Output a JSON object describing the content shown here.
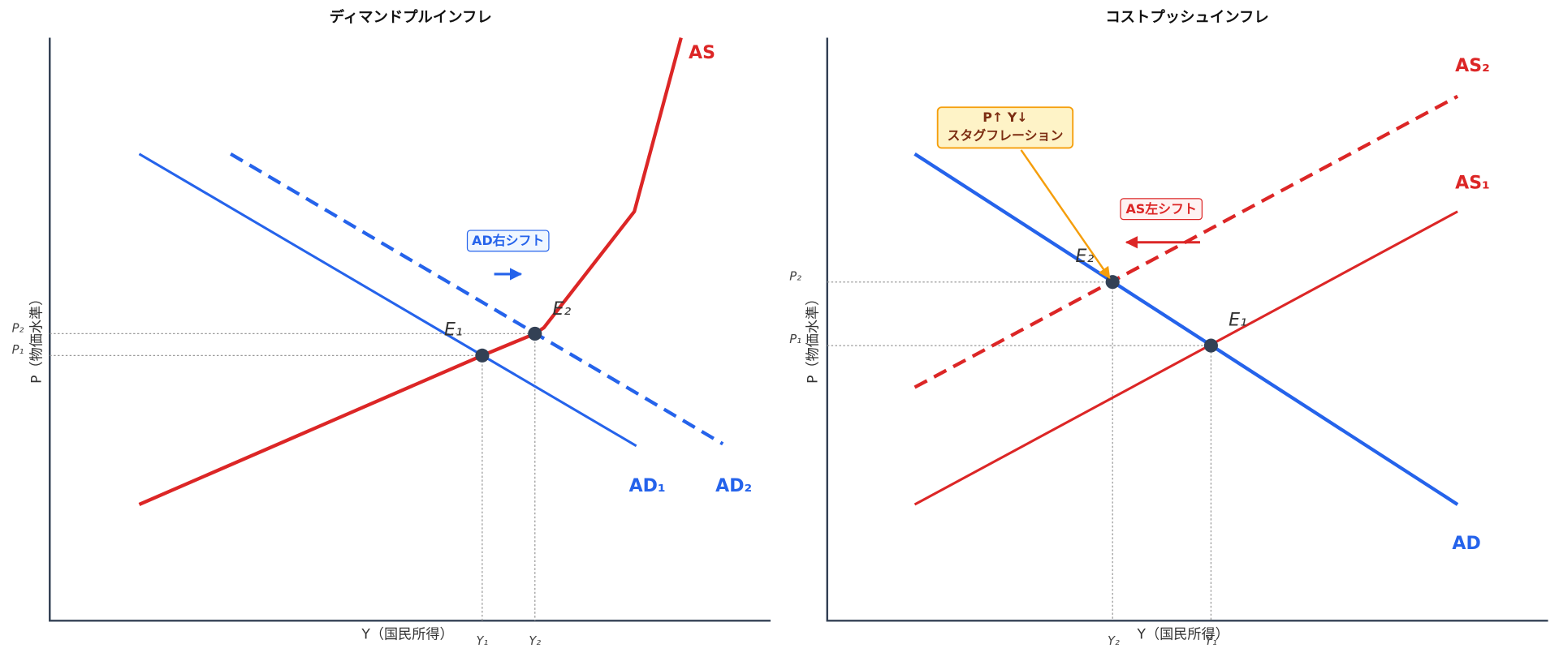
{
  "panels": [
    {
      "title": "ディマンドプルインフレ",
      "x_label": "Y（国民所得）",
      "y_label": "P（物価水準）",
      "curves": [
        "AS",
        "AD₁",
        "AD₂"
      ],
      "points": [
        "E₁",
        "E₂"
      ],
      "price_labels": [
        "P₁",
        "P₂"
      ],
      "income_labels": [
        "Y₁",
        "Y₂"
      ],
      "annotations": [
        "AD右シフト"
      ]
    },
    {
      "title": "コストプッシュインフレ",
      "x_label": "Y（国民所得）",
      "y_label": "P（物価水準）",
      "curves": [
        "AS₁",
        "AS₂",
        "AD"
      ],
      "points": [
        "E₁",
        "E₂"
      ],
      "price_labels": [
        "P₁",
        "P₂"
      ],
      "income_labels": [
        "Y₁",
        "Y₂"
      ],
      "annotations": [
        "AS左シフト",
        "P↑ Y↓",
        "スタグフレーション"
      ]
    }
  ]
}
